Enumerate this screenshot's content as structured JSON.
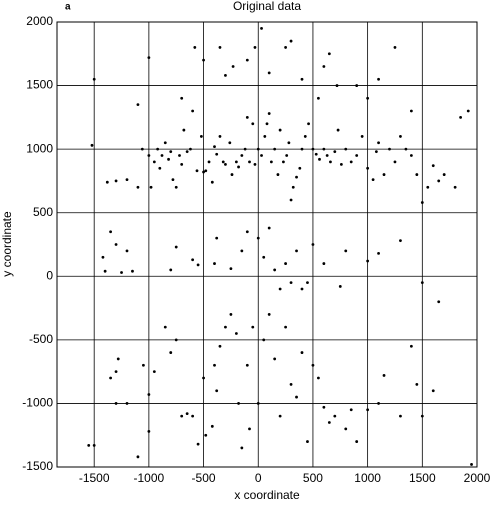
{
  "chart_data": {
    "type": "scatter",
    "title": "Original data",
    "panel_label": "a",
    "x_label": "x coordinate",
    "y_label": "y coordinate",
    "color": "#000000",
    "grid": true,
    "xlim": [
      -1840,
      2000
    ],
    "ylim": [
      -1500,
      2000
    ],
    "xticks": [
      -1500,
      -1000,
      -500,
      0,
      500,
      1000,
      1500,
      2000
    ],
    "yticks": [
      -1500,
      -1000,
      -500,
      0,
      500,
      1000,
      1500,
      2000
    ],
    "x": [
      -1520,
      -1380,
      -1300,
      -1200,
      -1100,
      -1060,
      -1000,
      -980,
      -950,
      -920,
      -900,
      -880,
      -850,
      -820,
      -800,
      -780,
      -750,
      -720,
      -700,
      -680,
      -650,
      -620,
      -600,
      -560,
      -520,
      -500,
      -480,
      -450,
      -420,
      -400,
      -380,
      -350,
      -320,
      -300,
      -260,
      -240,
      -200,
      -180,
      -150,
      -120,
      -100,
      -80,
      -50,
      -30,
      0,
      30,
      60,
      80,
      100,
      120,
      150,
      180,
      200,
      230,
      260,
      280,
      300,
      320,
      350,
      380,
      400,
      430,
      460,
      500,
      530,
      560,
      600,
      630,
      660,
      700,
      730,
      760,
      800,
      850,
      900,
      950,
      1000,
      1050,
      1080,
      1100,
      1150,
      1200,
      1250,
      1300,
      1350,
      1400,
      1450,
      1500,
      1550,
      1600,
      1650,
      1700,
      1800,
      1850,
      1920,
      -1500,
      -1000,
      -1100,
      -700,
      -580,
      -500,
      -350,
      -300,
      -230,
      -100,
      -30,
      30,
      100,
      250,
      300,
      400,
      550,
      600,
      650,
      720,
      900,
      1000,
      1100,
      1250,
      1400,
      -1420,
      -1400,
      -1350,
      -1300,
      -1250,
      -1150,
      -1200,
      -800,
      -750,
      -600,
      -550,
      -400,
      -380,
      -250,
      -150,
      -100,
      0,
      50,
      100,
      150,
      200,
      250,
      300,
      350,
      400,
      450,
      500,
      600,
      750,
      800,
      1000,
      1100,
      1300,
      1500,
      1650,
      -1550,
      -1500,
      -1350,
      -1300,
      -1280,
      -1200,
      -1000,
      -1000,
      -950,
      -1050,
      -850,
      -800,
      -750,
      -700,
      -650,
      -600,
      -550,
      -500,
      -480,
      -420,
      -400,
      -380,
      -350,
      -300,
      -250,
      -200,
      -180,
      -150,
      -100,
      -80,
      -50,
      0,
      50,
      100,
      150,
      200,
      250,
      300,
      350,
      400,
      450,
      500,
      550,
      600,
      650,
      700,
      800,
      850,
      900,
      1000,
      1100,
      1150,
      1300,
      1400,
      1450,
      1500,
      1600,
      1950,
      -1300,
      -1100
    ],
    "values": [
      1030,
      740,
      750,
      760,
      700,
      1000,
      950,
      700,
      900,
      1000,
      850,
      950,
      1050,
      920,
      980,
      760,
      700,
      950,
      880,
      1150,
      980,
      1000,
      1300,
      830,
      1100,
      820,
      830,
      900,
      740,
      1020,
      960,
      1100,
      900,
      880,
      1050,
      800,
      900,
      860,
      950,
      1000,
      1250,
      900,
      1200,
      880,
      1000,
      950,
      1100,
      1200,
      1280,
      900,
      1000,
      800,
      1150,
      900,
      950,
      1050,
      600,
      700,
      780,
      850,
      1000,
      1100,
      1200,
      1000,
      960,
      920,
      1000,
      950,
      900,
      980,
      1150,
      880,
      1000,
      900,
      950,
      1100,
      850,
      760,
      980,
      1050,
      800,
      1000,
      900,
      1100,
      1000,
      950,
      800,
      580,
      700,
      870,
      750,
      800,
      700,
      1250,
      1300,
      1550,
      1720,
      1350,
      1400,
      1800,
      1700,
      1800,
      1580,
      1650,
      1700,
      1800,
      1950,
      1600,
      1800,
      1850,
      1550,
      1400,
      1650,
      1750,
      1500,
      1500,
      1400,
      1550,
      1800,
      1300,
      150,
      40,
      350,
      250,
      30,
      40,
      200,
      50,
      230,
      130,
      90,
      100,
      300,
      60,
      200,
      350,
      300,
      150,
      380,
      50,
      -100,
      100,
      -50,
      200,
      -100,
      -50,
      250,
      100,
      -80,
      200,
      120,
      180,
      280,
      -50,
      -200,
      -1330,
      -1330,
      -800,
      -750,
      -650,
      -1000,
      -1220,
      -930,
      -750,
      -700,
      -400,
      -600,
      -500,
      -1100,
      -1080,
      -1100,
      -1320,
      -800,
      -1250,
      -1180,
      -700,
      -900,
      -550,
      -400,
      -300,
      -450,
      -1000,
      -1350,
      -700,
      -1200,
      -400,
      -1000,
      -500,
      -300,
      -650,
      -1100,
      -400,
      -850,
      -950,
      -600,
      -1300,
      -700,
      -800,
      -1030,
      -1150,
      -1100,
      -1200,
      -1050,
      -1300,
      -1050,
      -1000,
      -780,
      -1100,
      -550,
      -850,
      -1100,
      -900,
      -1480,
      -1000,
      -1420
    ]
  }
}
